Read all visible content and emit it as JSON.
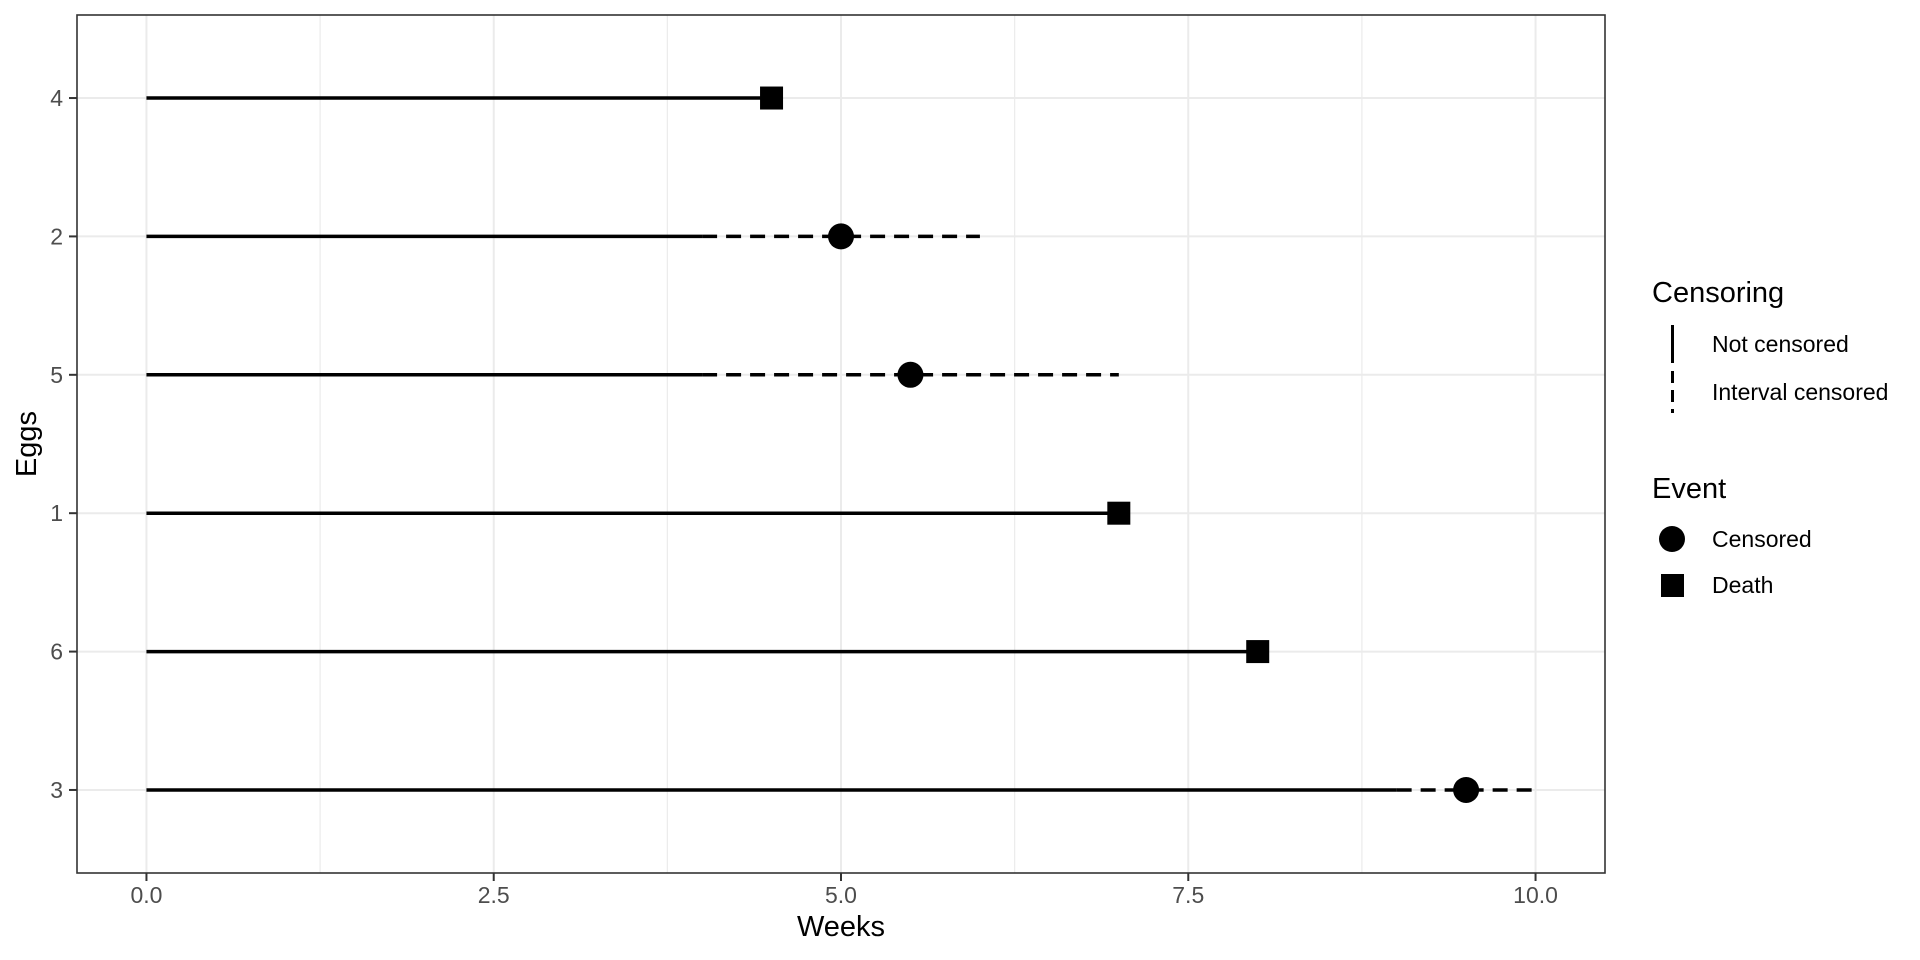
{
  "colors": {
    "data": "#000000",
    "grid": "#ebebeb",
    "border": "#333333",
    "tick_label": "#4d4d4d",
    "background": "#ffffff"
  },
  "chart_data": {
    "type": "line",
    "subtype": "interval-censored-survival-timeline",
    "title": "",
    "xlabel": "Weeks",
    "ylabel": "Eggs",
    "xlim": [
      -0.5,
      10.5
    ],
    "x_ticks": {
      "values": [
        0,
        2.5,
        5,
        7.5,
        10
      ],
      "labels": [
        "0.0",
        "2.5",
        "5.0",
        "7.5",
        "10.0"
      ]
    },
    "x_minor_ticks": [
      1.25,
      3.75,
      6.25,
      8.75
    ],
    "grid": true,
    "legend_position": "right",
    "categories": [
      "4",
      "2",
      "5",
      "1",
      "6",
      "3"
    ],
    "rows": [
      {
        "egg": "4",
        "solid": [
          0,
          4.5
        ],
        "dashed": null,
        "event": "death",
        "event_x": 4.5
      },
      {
        "egg": "2",
        "solid": [
          0,
          4.0
        ],
        "dashed": [
          4,
          6
        ],
        "event": "censored",
        "event_x": 5.0
      },
      {
        "egg": "5",
        "solid": [
          0,
          4.0
        ],
        "dashed": [
          4,
          7
        ],
        "event": "censored",
        "event_x": 5.5
      },
      {
        "egg": "1",
        "solid": [
          0,
          7.0
        ],
        "dashed": null,
        "event": "death",
        "event_x": 7.0
      },
      {
        "egg": "6",
        "solid": [
          0,
          8.0
        ],
        "dashed": null,
        "event": "death",
        "event_x": 8.0
      },
      {
        "egg": "3",
        "solid": [
          0,
          9.0
        ],
        "dashed": [
          9,
          10
        ],
        "event": "censored",
        "event_x": 9.5
      }
    ]
  },
  "legend": {
    "censoring": {
      "title": "Censoring",
      "items": [
        {
          "label": "Not censored",
          "line": "solid"
        },
        {
          "label": "Interval censored",
          "line": "dashed"
        }
      ]
    },
    "event": {
      "title": "Event",
      "items": [
        {
          "label": "Censored",
          "marker": "circle"
        },
        {
          "label": "Death",
          "marker": "square"
        }
      ]
    }
  }
}
